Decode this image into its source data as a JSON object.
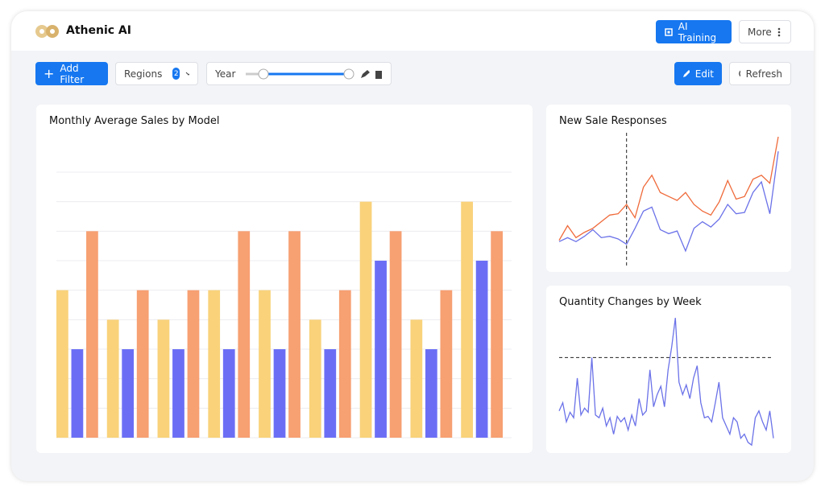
{
  "header": {
    "brand": "Athenic AI",
    "ai_training": "AI Training",
    "more": "More"
  },
  "toolbar": {
    "add_filter": "Add Filter",
    "regions": "Regions",
    "regions_count": "2",
    "year": "Year",
    "edit": "Edit",
    "refresh": "Refresh"
  },
  "chart_data": [
    {
      "type": "bar",
      "title": "Monthly Average Sales by Model",
      "categories": [
        null,
        null,
        null,
        null,
        null,
        null,
        null,
        null,
        null
      ],
      "series": [
        {
          "color": "#f9d27a",
          "values": [
            5,
            4,
            4,
            5,
            5,
            4,
            8,
            4,
            8
          ]
        },
        {
          "color": "#6b6ef5",
          "values": [
            3,
            3,
            3,
            3,
            3,
            3,
            6,
            3,
            6
          ]
        },
        {
          "color": "#f7a072",
          "values": [
            7,
            5,
            5,
            7,
            7,
            5,
            7,
            5,
            7
          ]
        }
      ],
      "ylim": [
        0,
        9
      ],
      "yticks": [
        0,
        1,
        2,
        3,
        4,
        5,
        6,
        7,
        8,
        9
      ],
      "grid": true
    },
    {
      "type": "line",
      "title": "New Sale Responses",
      "categories": [
        null,
        null,
        null,
        null,
        null,
        null,
        null,
        null,
        null,
        null,
        null,
        null,
        null,
        null,
        null,
        null,
        null,
        null,
        null,
        null,
        null,
        null,
        null,
        null,
        null,
        null,
        null
      ],
      "series": [
        {
          "color": "#ef6a3a",
          "values": [
            19,
            30,
            21,
            25,
            28,
            33,
            38,
            39,
            46,
            36,
            59,
            68,
            55,
            52,
            49,
            55,
            46,
            41,
            38,
            48,
            64,
            50,
            52,
            65,
            68,
            62,
            97
          ]
        },
        {
          "color": "#6b72e8",
          "values": [
            18,
            21,
            18,
            22,
            27,
            21,
            22,
            20,
            16,
            28,
            41,
            44,
            27,
            24,
            26,
            11,
            28,
            33,
            29,
            35,
            46,
            39,
            40,
            55,
            63,
            39,
            86
          ]
        }
      ],
      "ylim": [
        0,
        100
      ],
      "vline": 8
    },
    {
      "type": "line",
      "title": "Quantity Changes by Week",
      "categories": [
        null,
        null,
        null,
        null,
        null,
        null,
        null,
        null,
        null,
        null,
        null,
        null,
        null,
        null,
        null,
        null,
        null,
        null,
        null,
        null,
        null,
        null,
        null,
        null,
        null,
        null,
        null,
        null,
        null,
        null,
        null,
        null,
        null,
        null,
        null,
        null,
        null,
        null,
        null,
        null,
        null,
        null,
        null,
        null,
        null,
        null,
        null,
        null,
        null,
        null,
        null,
        null,
        null,
        null,
        null,
        null,
        null,
        null,
        null,
        null
      ],
      "series": [
        {
          "color": "#6b72e8",
          "values": [
            29,
            35,
            21,
            28,
            24,
            53,
            26,
            31,
            28,
            68,
            26,
            24,
            31,
            18,
            24,
            12,
            25,
            21,
            24,
            15,
            26,
            18,
            38,
            26,
            29,
            59,
            32,
            41,
            47,
            32,
            59,
            76,
            97,
            50,
            41,
            48,
            38,
            53,
            62,
            35,
            24,
            25,
            21,
            35,
            50,
            24,
            18,
            12,
            24,
            21,
            9,
            12,
            6,
            4,
            24,
            29,
            21,
            15,
            29,
            9
          ]
        }
      ],
      "ylim": [
        0,
        100
      ],
      "hline": 68
    }
  ]
}
